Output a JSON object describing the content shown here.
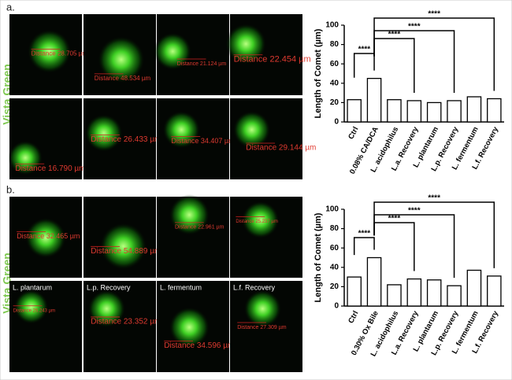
{
  "panels": [
    {
      "label": "a.",
      "stain": "Vista Green",
      "images": [
        {
          "distance": "Distance 28.705 µm"
        },
        {
          "distance": "Distance 48.534 µm"
        },
        {
          "distance": "Distance 21.124 µm"
        },
        {
          "distance": "Distance 22.454 µm"
        },
        {
          "distance": "Distance 16.790 µm"
        },
        {
          "distance": "Distance 26.433 µm"
        },
        {
          "distance": "Distance 34.407 µm"
        },
        {
          "distance": "Distance 29.144 µm"
        }
      ]
    },
    {
      "label": "b.",
      "stain": "Vista Green",
      "images": [
        {
          "distance": "Distance 32.465 µm"
        },
        {
          "distance": "Distance 54.889 µm"
        },
        {
          "distance": "Distance 22.961 µm"
        },
        {
          "distance": "Distance 25.237 µm"
        },
        {
          "caption": "L. plantarum",
          "distance": "Distance 26.243 µm"
        },
        {
          "caption": "L.p. Recovery",
          "distance": "Distance 23.352 µm"
        },
        {
          "caption": "L. fermentum",
          "distance": "Distance 34.596 µm"
        },
        {
          "caption": "L.f. Recovery",
          "distance": "Distance 27.309 µm"
        }
      ]
    }
  ],
  "chart_data": [
    {
      "type": "bar",
      "ylabel": "Length of Comet (µm)",
      "categories": [
        "Ctrl",
        "0.08% CA/DCA",
        "L. acidophilus",
        "L.a. Recovery",
        "L. plantarum",
        "L.p. Recovery",
        "L. fermentum",
        "L.f. Recovery"
      ],
      "values": [
        23,
        45,
        23,
        22,
        20,
        22,
        26,
        24
      ],
      "color": "#ffffff",
      "ylim": [
        0,
        100
      ],
      "yticks": [
        0,
        20,
        40,
        60,
        80,
        100
      ],
      "significance": [
        {
          "from": 0,
          "to": 1,
          "label": "****"
        },
        {
          "from": 1,
          "to": 3,
          "label": "****"
        },
        {
          "from": 1,
          "to": 5,
          "label": "****"
        },
        {
          "from": 1,
          "to": 7,
          "label": "****"
        }
      ]
    },
    {
      "type": "bar",
      "ylabel": "Length of Comet (µm)",
      "categories": [
        "Ctrl",
        "0.30% Ox Bile",
        "L. acidophilus",
        "L.a. Recovery",
        "L. plantarum",
        "L.p. Recovery",
        "L. fermentum",
        "L.f. Recovery"
      ],
      "values": [
        30,
        50,
        22,
        28,
        27,
        21,
        37,
        31
      ],
      "color": "#ffffff",
      "ylim": [
        0,
        100
      ],
      "yticks": [
        0,
        20,
        40,
        60,
        80,
        100
      ],
      "significance": [
        {
          "from": 0,
          "to": 1,
          "label": "****"
        },
        {
          "from": 1,
          "to": 3,
          "label": "****"
        },
        {
          "from": 1,
          "to": 5,
          "label": "****"
        },
        {
          "from": 1,
          "to": 7,
          "label": "****"
        }
      ]
    }
  ]
}
